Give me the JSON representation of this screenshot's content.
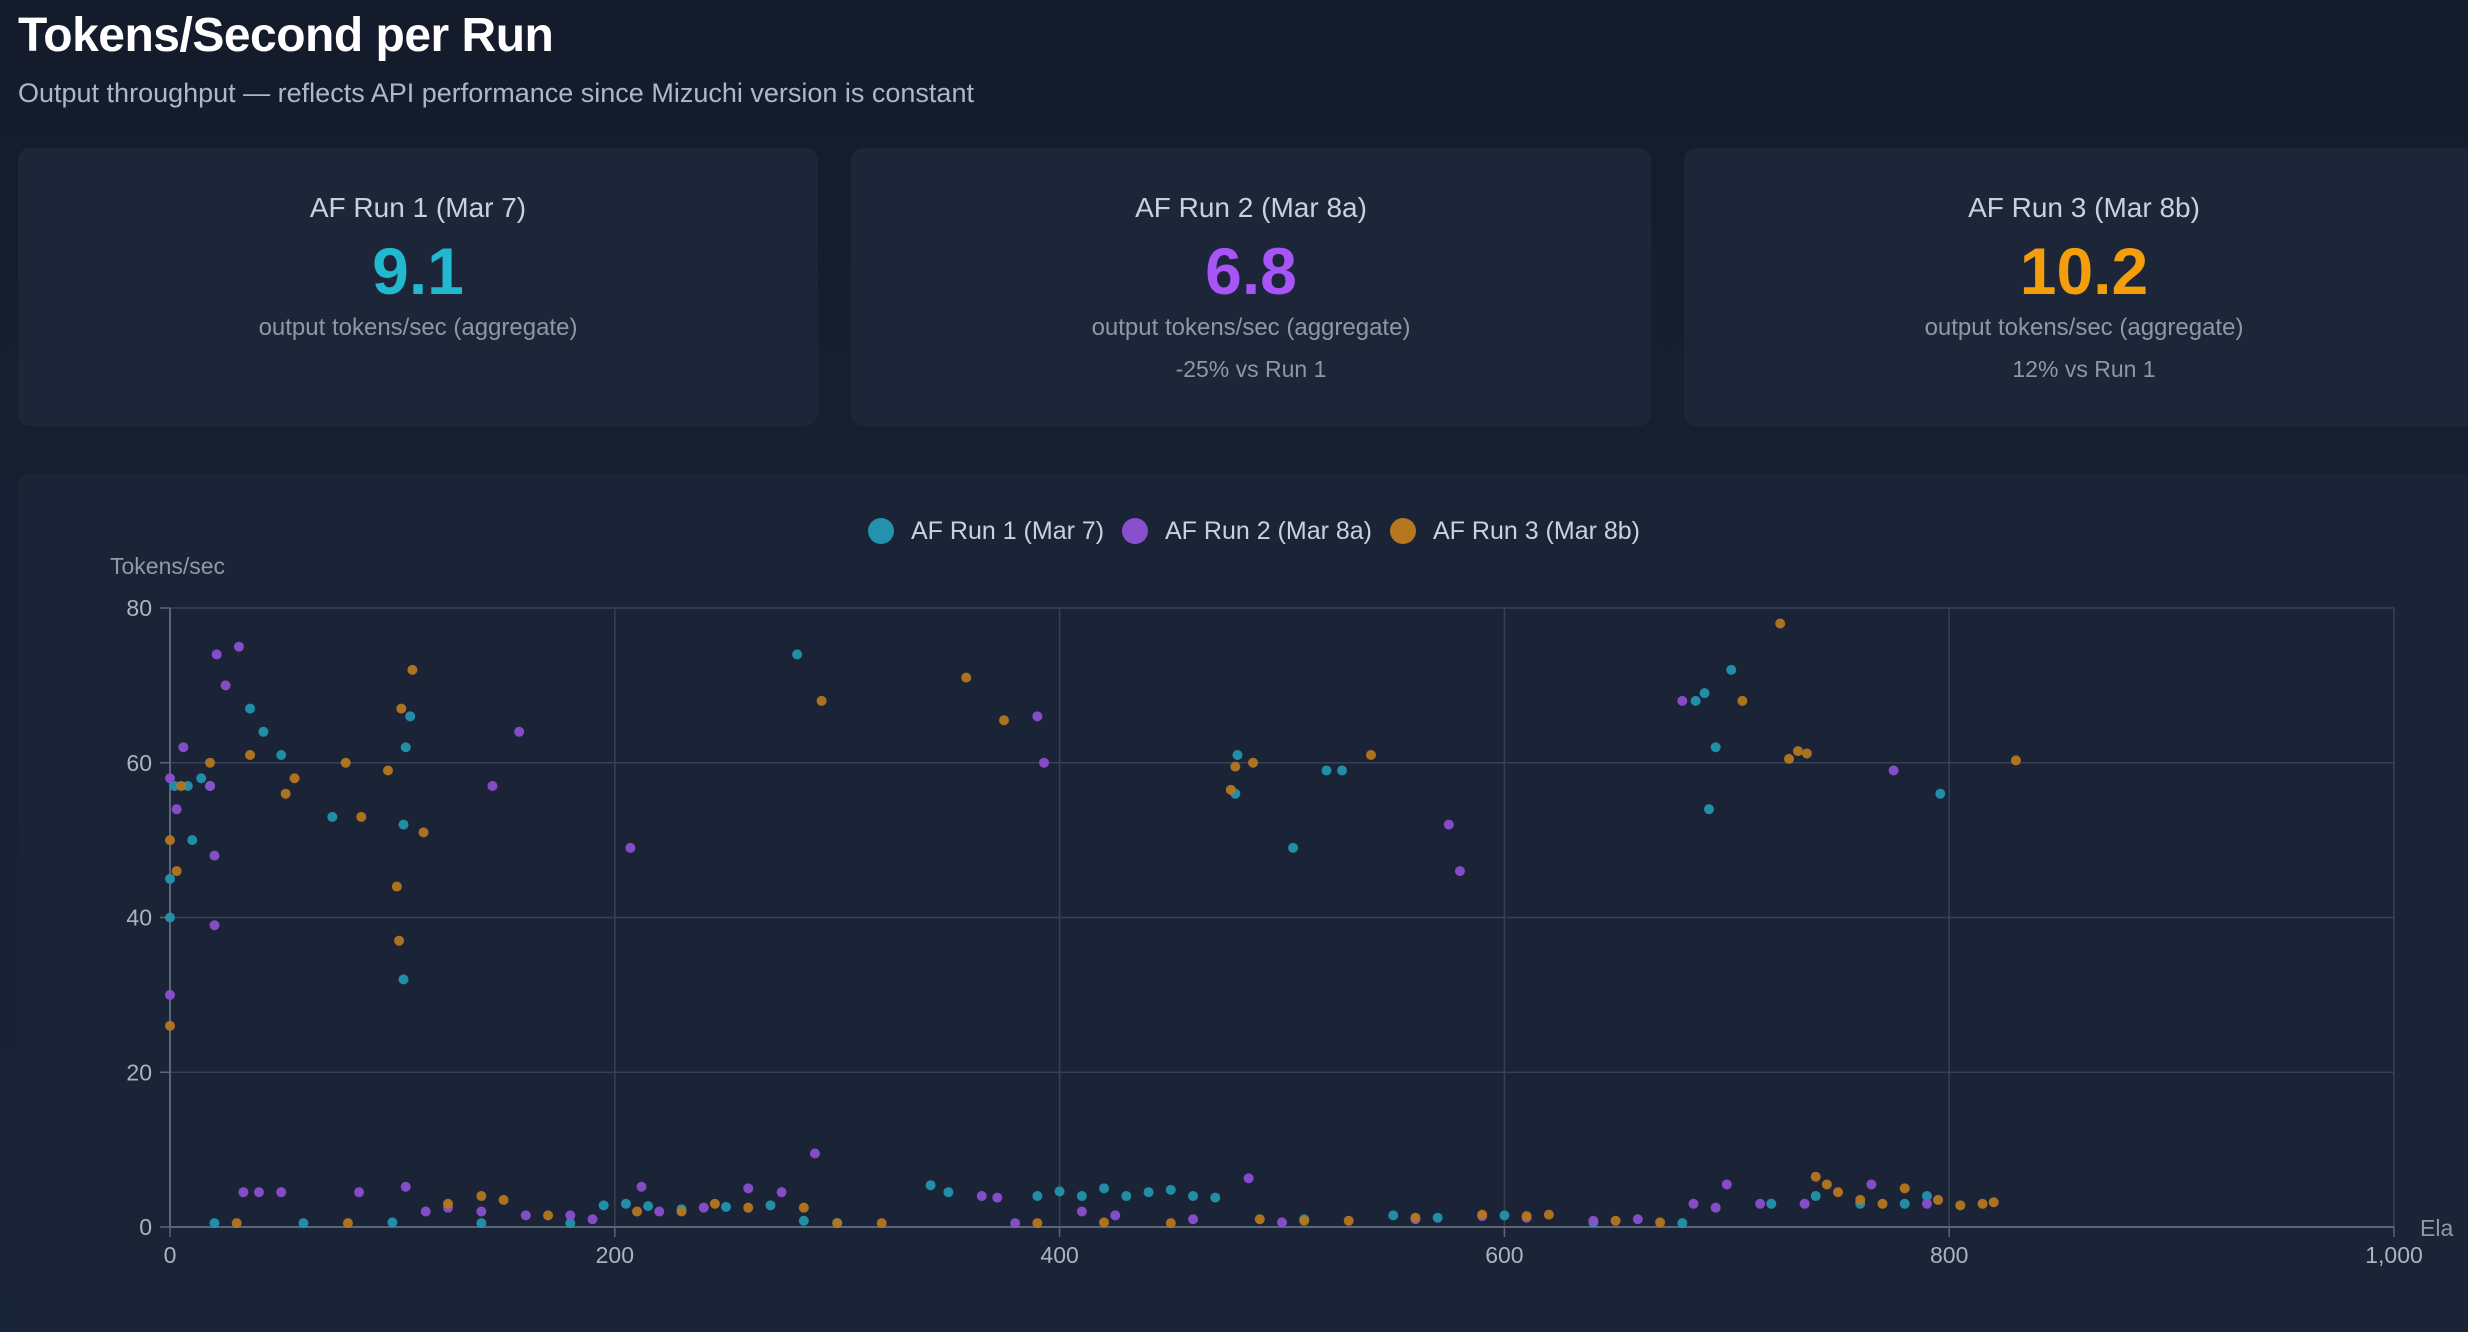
{
  "header": {
    "title": "Tokens/Second per Run",
    "subtitle": "Output throughput — reflects API performance since Mizuchi version is constant"
  },
  "cards": [
    {
      "label": "AF Run 1 (Mar 7)",
      "value": "9.1",
      "sub": "output tokens/sec (aggregate)",
      "delta": "",
      "color": "#22b8cf"
    },
    {
      "label": "AF Run 2 (Mar 8a)",
      "value": "6.8",
      "sub": "output tokens/sec (aggregate)",
      "delta": "-25% vs Run 1",
      "color": "#a855f7"
    },
    {
      "label": "AF Run 3 (Mar 8b)",
      "value": "10.2",
      "sub": "output tokens/sec (aggregate)",
      "delta": "12% vs Run 1",
      "color": "#f59e0b"
    }
  ],
  "chart_data": {
    "type": "scatter",
    "title": "",
    "xlabel": "Ela",
    "ylabel": "Tokens/sec",
    "xlim": [
      0,
      1000
    ],
    "ylim": [
      0,
      80
    ],
    "xticks": [
      "0",
      "200",
      "400",
      "600",
      "800",
      "1,000"
    ],
    "yticks": [
      "0",
      "20",
      "40",
      "60",
      "80"
    ],
    "grid": true,
    "legend": "top-center",
    "series": [
      {
        "name": "AF Run 1 (Mar 7)",
        "color": "#2393ad",
        "points": [
          [
            0,
            45
          ],
          [
            0,
            40
          ],
          [
            2,
            57
          ],
          [
            8,
            57
          ],
          [
            10,
            50
          ],
          [
            14,
            58
          ],
          [
            18,
            57
          ],
          [
            36,
            67
          ],
          [
            42,
            64
          ],
          [
            50,
            61
          ],
          [
            73,
            53
          ],
          [
            105,
            52
          ],
          [
            106,
            62
          ],
          [
            108,
            66
          ],
          [
            105,
            32
          ],
          [
            20,
            0.5
          ],
          [
            60,
            0.5
          ],
          [
            100,
            0.6
          ],
          [
            140,
            0.5
          ],
          [
            180,
            0.5
          ],
          [
            195,
            2.8
          ],
          [
            205,
            3
          ],
          [
            215,
            2.7
          ],
          [
            230,
            2.3
          ],
          [
            250,
            2.6
          ],
          [
            270,
            2.8
          ],
          [
            285,
            0.8
          ],
          [
            300,
            0.5
          ],
          [
            282,
            74
          ],
          [
            342,
            5.4
          ],
          [
            350,
            4.5
          ],
          [
            390,
            4
          ],
          [
            400,
            4.6
          ],
          [
            410,
            4
          ],
          [
            420,
            5
          ],
          [
            430,
            4
          ],
          [
            440,
            4.5
          ],
          [
            450,
            4.8
          ],
          [
            460,
            4
          ],
          [
            470,
            3.8
          ],
          [
            480,
            61
          ],
          [
            479,
            56
          ],
          [
            505,
            49
          ],
          [
            520,
            59
          ],
          [
            527,
            59
          ],
          [
            510,
            1
          ],
          [
            550,
            1.5
          ],
          [
            570,
            1.2
          ],
          [
            600,
            1.5
          ],
          [
            640,
            0.6
          ],
          [
            680,
            0.5
          ],
          [
            690,
            69
          ],
          [
            686,
            68
          ],
          [
            702,
            72
          ],
          [
            695,
            62
          ],
          [
            692,
            54
          ],
          [
            720,
            3
          ],
          [
            740,
            4
          ],
          [
            760,
            3
          ],
          [
            780,
            3
          ],
          [
            790,
            4
          ],
          [
            796,
            56
          ]
        ]
      },
      {
        "name": "AF Run 2 (Mar 8a)",
        "color": "#8a4fcf",
        "points": [
          [
            0,
            58
          ],
          [
            0,
            30
          ],
          [
            3,
            54
          ],
          [
            6,
            62
          ],
          [
            18,
            57
          ],
          [
            20,
            48
          ],
          [
            20,
            39
          ],
          [
            21,
            74
          ],
          [
            25,
            70
          ],
          [
            31,
            75
          ],
          [
            33,
            4.5
          ],
          [
            40,
            4.5
          ],
          [
            50,
            4.5
          ],
          [
            85,
            4.5
          ],
          [
            106,
            5.2
          ],
          [
            145,
            57
          ],
          [
            157,
            64
          ],
          [
            207,
            49
          ],
          [
            212,
            5.2
          ],
          [
            115,
            2
          ],
          [
            125,
            2.5
          ],
          [
            140,
            2
          ],
          [
            160,
            1.5
          ],
          [
            180,
            1.5
          ],
          [
            190,
            1
          ],
          [
            220,
            2
          ],
          [
            240,
            2.5
          ],
          [
            260,
            5
          ],
          [
            275,
            4.5
          ],
          [
            290,
            9.5
          ],
          [
            365,
            4
          ],
          [
            372,
            3.8
          ],
          [
            380,
            0.5
          ],
          [
            390,
            66
          ],
          [
            393,
            60
          ],
          [
            410,
            2
          ],
          [
            425,
            1.5
          ],
          [
            460,
            1
          ],
          [
            485,
            6.3
          ],
          [
            500,
            0.6
          ],
          [
            575,
            52
          ],
          [
            580,
            46
          ],
          [
            560,
            1
          ],
          [
            590,
            1.4
          ],
          [
            610,
            1.2
          ],
          [
            640,
            0.8
          ],
          [
            660,
            1
          ],
          [
            680,
            68
          ],
          [
            685,
            3
          ],
          [
            695,
            2.5
          ],
          [
            700,
            5.5
          ],
          [
            715,
            3
          ],
          [
            735,
            3
          ],
          [
            765,
            5.5
          ],
          [
            775,
            59
          ],
          [
            790,
            3
          ]
        ]
      },
      {
        "name": "AF Run 3 (Mar 8b)",
        "color": "#b5771f",
        "points": [
          [
            0,
            50
          ],
          [
            0,
            26
          ],
          [
            3,
            46
          ],
          [
            5,
            57
          ],
          [
            18,
            60
          ],
          [
            36,
            61
          ],
          [
            52,
            56
          ],
          [
            56,
            58
          ],
          [
            79,
            60
          ],
          [
            86,
            53
          ],
          [
            98,
            59
          ],
          [
            102,
            44
          ],
          [
            103,
            37
          ],
          [
            104,
            67
          ],
          [
            109,
            72
          ],
          [
            114,
            51
          ],
          [
            30,
            0.5
          ],
          [
            80,
            0.5
          ],
          [
            125,
            3
          ],
          [
            140,
            4
          ],
          [
            150,
            3.5
          ],
          [
            170,
            1.5
          ],
          [
            210,
            2
          ],
          [
            230,
            2
          ],
          [
            245,
            3
          ],
          [
            260,
            2.5
          ],
          [
            285,
            2.5
          ],
          [
            293,
            68
          ],
          [
            300,
            0.5
          ],
          [
            320,
            0.5
          ],
          [
            358,
            71
          ],
          [
            375,
            65.5
          ],
          [
            390,
            0.5
          ],
          [
            420,
            0.6
          ],
          [
            450,
            0.5
          ],
          [
            477,
            56.5
          ],
          [
            479,
            59.5
          ],
          [
            487,
            60
          ],
          [
            540,
            61
          ],
          [
            490,
            1
          ],
          [
            510,
            0.8
          ],
          [
            530,
            0.8
          ],
          [
            560,
            1.2
          ],
          [
            590,
            1.6
          ],
          [
            610,
            1.4
          ],
          [
            620,
            1.6
          ],
          [
            650,
            0.8
          ],
          [
            670,
            0.6
          ],
          [
            724,
            78
          ],
          [
            707,
            68
          ],
          [
            728,
            60.5
          ],
          [
            732,
            61.5
          ],
          [
            736,
            61.2
          ],
          [
            740,
            6.5
          ],
          [
            745,
            5.5
          ],
          [
            750,
            4.5
          ],
          [
            760,
            3.5
          ],
          [
            770,
            3
          ],
          [
            780,
            5
          ],
          [
            795,
            3.5
          ],
          [
            805,
            2.8
          ],
          [
            815,
            3
          ],
          [
            820,
            3.2
          ],
          [
            830,
            60.3
          ]
        ]
      }
    ]
  }
}
